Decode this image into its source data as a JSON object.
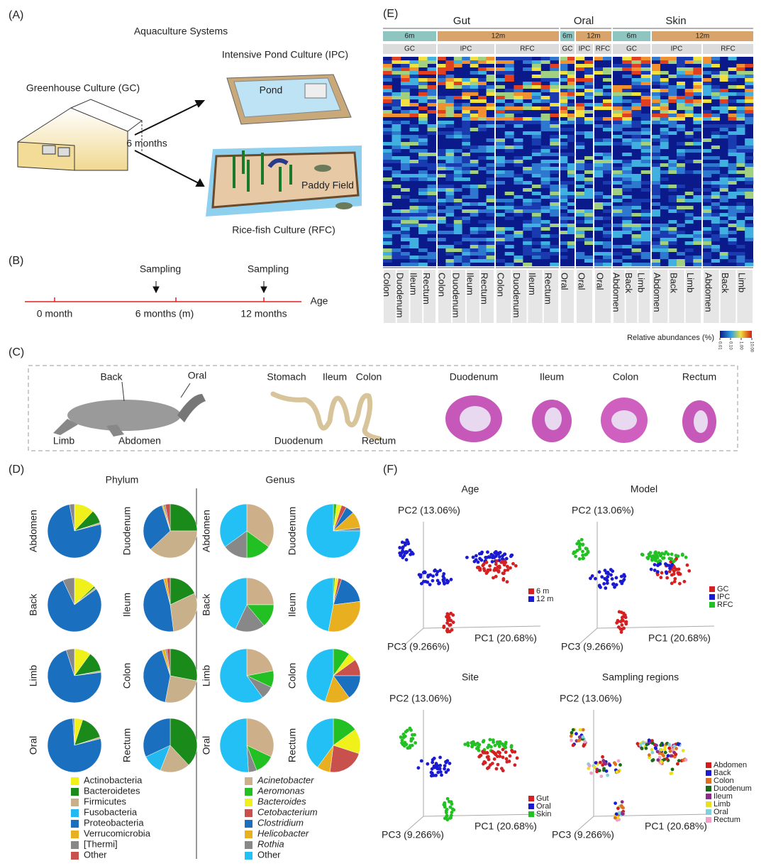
{
  "A": {
    "label": "(A)",
    "title": "Aquaculture Systems",
    "ipc": "Intensive Pond Culture (IPC)",
    "gc": "Greenhouse Culture (GC)",
    "pond": "Pond",
    "interval": "6 months",
    "paddy": "Paddy Field",
    "rfc": "Rice-fish Culture (RFC)"
  },
  "B": {
    "label": "(B)",
    "sampling": [
      "Sampling",
      "Sampling"
    ],
    "ticks": [
      "0 month",
      "6 months (m)",
      "12 months"
    ],
    "axis": "Age"
  },
  "C": {
    "label": "(C)",
    "turtle": [
      "Back",
      "Oral",
      "Limb",
      "Abdomen"
    ],
    "intestine": [
      "Stomach",
      "Ileum",
      "Colon",
      "Duodenum",
      "Rectum"
    ],
    "histology": [
      "Duodenum",
      "Ileum",
      "Colon",
      "Rectum"
    ]
  },
  "D": {
    "label": "(D)",
    "charts": [
      {
        "type": "pie",
        "title": "Phylum",
        "categories": [
          "Actinobacteria",
          "Bacteroidetes",
          "Firmicutes",
          "Fusobacteria",
          "Proteobacteria",
          "Verrucomicrobia",
          "[Thermi]",
          "Other"
        ],
        "colors": [
          "#f0f01a",
          "#1a8a1a",
          "#c8b08a",
          "#22b8f0",
          "#1a6fbf",
          "#e8b020",
          "#888888",
          "#c8504d"
        ],
        "italic": [
          false,
          false,
          false,
          false,
          false,
          false,
          false,
          false
        ],
        "pies": [
          {
            "name": "Abdomen",
            "values": [
              12,
              8,
              1,
              0,
              76,
              0,
              3,
              0
            ]
          },
          {
            "name": "Duodenum",
            "values": [
              0,
              25,
              38,
              0,
              32,
              1,
              1,
              3
            ]
          },
          {
            "name": "Back",
            "values": [
              13,
              1,
              1,
              0,
              78,
              0,
              7,
              0
            ]
          },
          {
            "name": "Ileum",
            "values": [
              0,
              18,
              30,
              0,
              48,
              2,
              0,
              2
            ]
          },
          {
            "name": "Limb",
            "values": [
              10,
              12,
              1,
              0,
              72,
              0,
              5,
              0
            ]
          },
          {
            "name": "Colon",
            "values": [
              0,
              28,
              25,
              0,
              42,
              2,
              1,
              2
            ]
          },
          {
            "name": "Oral",
            "values": [
              5,
              15,
              1,
              0,
              78,
              0,
              1,
              0
            ]
          },
          {
            "name": "Rectum",
            "values": [
              0,
              38,
              18,
              12,
              32,
              0,
              0,
              0
            ]
          }
        ]
      },
      {
        "type": "pie",
        "title": "Genus",
        "categories": [
          "Acinetobacter",
          "Aeromonas",
          "Bacteroides",
          "Cetobacterium",
          "Clostridium",
          "Helicobacter",
          "Rothia",
          "Other"
        ],
        "colors": [
          "#cdb08a",
          "#22c022",
          "#f0f01a",
          "#c8504d",
          "#1a6fbf",
          "#e8b020",
          "#888888",
          "#22c0f5"
        ],
        "italic": [
          true,
          true,
          true,
          true,
          true,
          true,
          true,
          false
        ],
        "pies": [
          {
            "name": "Abdomen",
            "values": [
              35,
              15,
              0,
              0,
              0,
              0,
              15,
              35
            ]
          },
          {
            "name": "Duodenum",
            "values": [
              0,
              2,
              3,
              3,
              5,
              10,
              2,
              75
            ]
          },
          {
            "name": "Back",
            "values": [
              25,
              14,
              0,
              0,
              0,
              0,
              18,
              43
            ]
          },
          {
            "name": "Ileum",
            "values": [
              0,
              1,
              2,
              2,
              18,
              30,
              0,
              47
            ]
          },
          {
            "name": "Limb",
            "values": [
              22,
              10,
              0,
              0,
              0,
              0,
              8,
              60
            ]
          },
          {
            "name": "Colon",
            "values": [
              0,
              10,
              5,
              10,
              15,
              15,
              0,
              45
            ]
          },
          {
            "name": "Oral",
            "values": [
              32,
              12,
              0,
              0,
              0,
              0,
              5,
              51
            ]
          },
          {
            "name": "Rectum",
            "values": [
              0,
              15,
              15,
              22,
              0,
              8,
              0,
              40
            ]
          }
        ]
      }
    ]
  },
  "E": {
    "label": "(E)",
    "sites": [
      "Gut",
      "Oral",
      "Skin"
    ],
    "ages": [
      "6m",
      "12m",
      "6m",
      "12m",
      "6m",
      "12m"
    ],
    "age_colors": [
      "#8ec5c0",
      "#d9a46b",
      "#8ec5c0",
      "#d9a46b",
      "#8ec5c0",
      "#d9a46b"
    ],
    "systems": [
      "GC",
      "IPC",
      "RFC",
      "GC",
      "IPC",
      "RFC",
      "GC",
      "IPC",
      "RFC"
    ],
    "columns": [
      "Colon",
      "Duodenum",
      "Ileum",
      "Rectum",
      "Colon",
      "Duodenum",
      "Ileum",
      "Rectum",
      "Colon",
      "Duodenum",
      "Ileum",
      "Rectum",
      "Oral",
      "Oral",
      "Oral",
      "Abdomen",
      "Back",
      "Limb",
      "Abdomen",
      "Back",
      "Limb",
      "Abdomen",
      "Back",
      "Limb"
    ],
    "colorbar_title": "Relative abundances (%)",
    "colorbar_log": true,
    "colorbar_lim": [
      0.01,
      10
    ],
    "colorbar_ticks": [
      {
        "value": 0.01,
        "label": "0.01"
      },
      {
        "value": 0.1,
        "label": "0.10"
      },
      {
        "value": 1,
        "label": "1.00"
      },
      {
        "value": 10,
        "label": "10.00"
      }
    ]
  },
  "F": {
    "label": "(F)",
    "plots": [
      {
        "title": "Age",
        "axes": [
          "PC2 (13.06%)",
          "PC3 (9.266%)",
          "PC1 (20.68%)"
        ],
        "legend": [
          {
            "name": "6 m",
            "color": "#d42020"
          },
          {
            "name": "12 m",
            "color": "#1a1ad0"
          }
        ]
      },
      {
        "title": "Model",
        "axes": [
          "PC2 (13.06%)",
          "PC3 (9.266%)",
          "PC1 (20.68%)"
        ],
        "legend": [
          {
            "name": "GC",
            "color": "#d42020"
          },
          {
            "name": "IPC",
            "color": "#1a1ad0"
          },
          {
            "name": "RFC",
            "color": "#22c022"
          }
        ]
      },
      {
        "title": "Site",
        "axes": [
          "PC2 (13.06%)",
          "PC3 (9.266%)",
          "PC1 (20.68%)"
        ],
        "legend": [
          {
            "name": "Gut",
            "color": "#d42020"
          },
          {
            "name": "Oral",
            "color": "#1a1ad0"
          },
          {
            "name": "Skin",
            "color": "#22c022"
          }
        ]
      },
      {
        "title": "Sampling regions",
        "axes": [
          "PC2 (13.06%)",
          "PC3 (9.266%)",
          "PC1 (20.68%)"
        ],
        "legend": [
          {
            "name": "Abdomen",
            "color": "#d01c1c"
          },
          {
            "name": "Back",
            "color": "#1c1cd0"
          },
          {
            "name": "Colon",
            "color": "#e07020"
          },
          {
            "name": "Duodenum",
            "color": "#1a6a1a"
          },
          {
            "name": "Ileum",
            "color": "#8a2c8a"
          },
          {
            "name": "Limb",
            "color": "#e8e020"
          },
          {
            "name": "Oral",
            "color": "#80d0e0"
          },
          {
            "name": "Rectum",
            "color": "#f0a0c8"
          }
        ]
      }
    ]
  }
}
